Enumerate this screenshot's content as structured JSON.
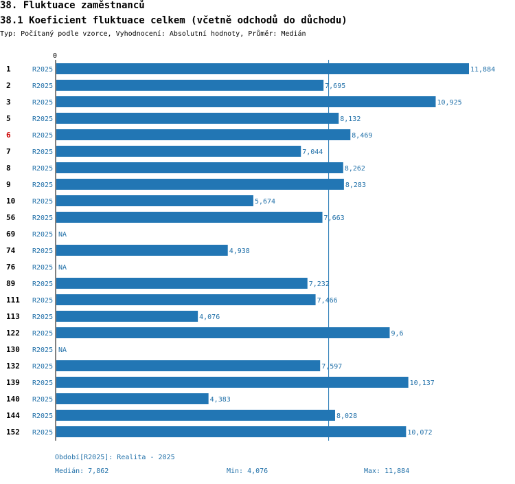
{
  "header": {
    "title": "38. Fluktuace zaměstnanců",
    "subtitle": "38.1 Koeficient fluktuace celkem (včetně odchodů do důchodu)",
    "info": "Typ: Počítaný podle vzorce, Vyhodnocení: Absolutní hodnoty, Průměr: Medián"
  },
  "colors": {
    "bar": "#2276b4",
    "text_blue": "#1f6fa8",
    "highlight": "#cc0000",
    "axis": "#000000"
  },
  "chart_data": {
    "type": "bar",
    "orientation": "horizontal",
    "axis_zero_label": "0",
    "xlim": [
      0,
      11.884
    ],
    "median": 7.862,
    "na_label": "NA",
    "highlight_category": "6",
    "categories": [
      "1",
      "2",
      "3",
      "5",
      "6",
      "7",
      "8",
      "9",
      "10",
      "56",
      "69",
      "74",
      "76",
      "89",
      "111",
      "113",
      "122",
      "130",
      "132",
      "139",
      "140",
      "144",
      "152"
    ],
    "period": [
      "R2025",
      "R2025",
      "R2025",
      "R2025",
      "R2025",
      "R2025",
      "R2025",
      "R2025",
      "R2025",
      "R2025",
      "R2025",
      "R2025",
      "R2025",
      "R2025",
      "R2025",
      "R2025",
      "R2025",
      "R2025",
      "R2025",
      "R2025",
      "R2025",
      "R2025",
      "R2025"
    ],
    "values": [
      11.884,
      7.695,
      10.925,
      8.132,
      8.469,
      7.044,
      8.262,
      8.283,
      5.674,
      7.663,
      null,
      4.938,
      null,
      7.232,
      7.466,
      4.076,
      9.6,
      null,
      7.597,
      10.137,
      4.383,
      8.028,
      10.072
    ],
    "value_labels": [
      "11,884",
      "7,695",
      "10,925",
      "8,132",
      "8,469",
      "7,044",
      "8,262",
      "8,283",
      "5,674",
      "7,663",
      "NA",
      "4,938",
      "NA",
      "7,232",
      "7,466",
      "4,076",
      "9,6",
      "NA",
      "7,597",
      "10,137",
      "4,383",
      "8,028",
      "10,072"
    ]
  },
  "footer": {
    "period": "Období[R2025]: Realita - 2025",
    "median": "Medián: 7,862",
    "min": "Min: 4,076",
    "max": "Max: 11,884"
  }
}
